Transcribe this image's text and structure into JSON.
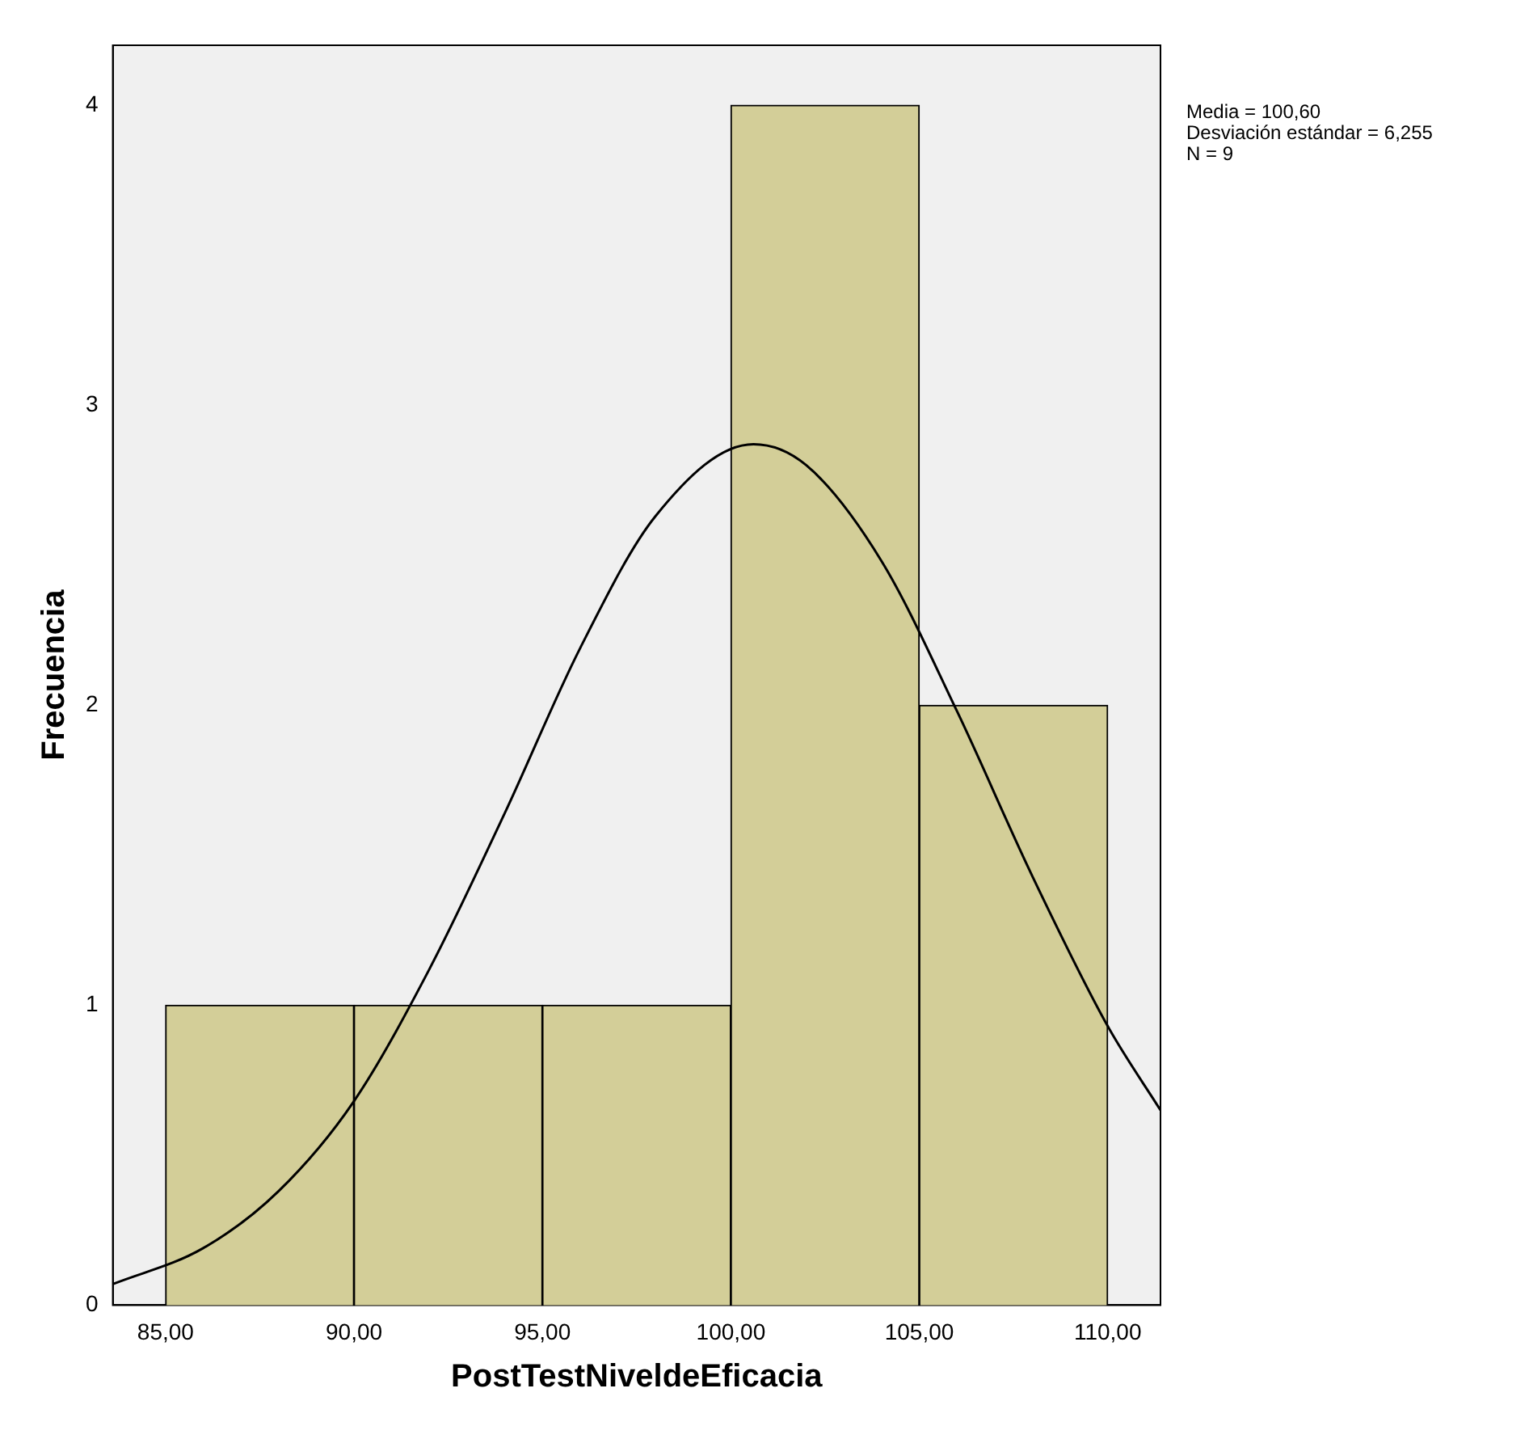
{
  "chart_data": {
    "type": "histogram",
    "xlabel": "PostTestNiveldeEficacia",
    "ylabel": "Frecuencia",
    "bins": [
      85,
      90,
      95,
      100,
      105,
      110
    ],
    "values": [
      1,
      1,
      1,
      4,
      2
    ],
    "color": "#d3ce98",
    "series": [
      {
        "type": "line",
        "color": "#000000",
        "marker": "none",
        "x": [
          83.6,
          86,
          88,
          90,
          92,
          94,
          96,
          98,
          100.6,
          102,
          104,
          106,
          108,
          110,
          111.4
        ],
        "values": [
          0.07,
          0.19,
          0.38,
          0.68,
          1.12,
          1.64,
          2.19,
          2.63,
          2.87,
          2.8,
          2.48,
          1.98,
          1.43,
          0.93,
          0.65
        ]
      }
    ],
    "xlim": [
      83.6,
      111.4
    ],
    "xticks": [
      {
        "value": 85,
        "label": "85,00"
      },
      {
        "value": 90,
        "label": "90,00"
      },
      {
        "value": 95,
        "label": "95,00"
      },
      {
        "value": 100,
        "label": "100,00"
      },
      {
        "value": 105,
        "label": "105,00"
      },
      {
        "value": 110,
        "label": "110,00"
      }
    ],
    "ylim": [
      0,
      4.2
    ],
    "yticks": [
      0,
      1,
      2,
      3,
      4
    ],
    "annotations": [
      "Media = 100,60",
      "Desviación estándar = 6,255",
      "N = 9"
    ]
  }
}
